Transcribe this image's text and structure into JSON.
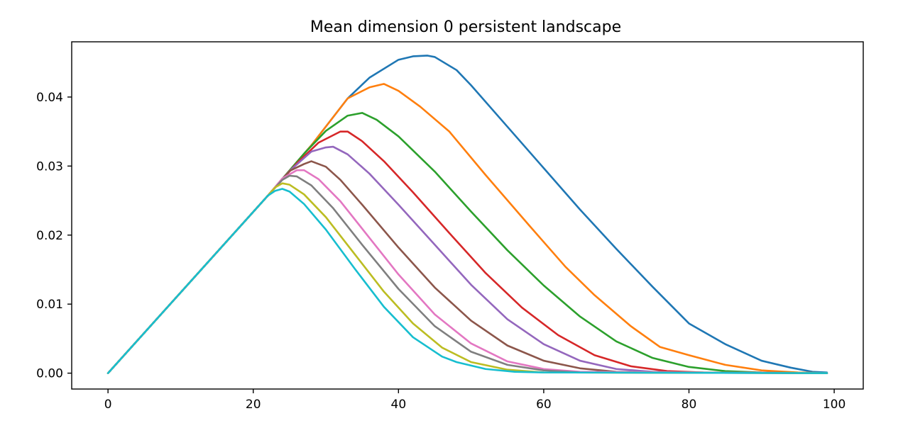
{
  "chart_data": {
    "type": "line",
    "title": "Mean dimension 0 persistent landscape",
    "xlabel": "",
    "ylabel": "",
    "xlim": [
      -5,
      104
    ],
    "ylim": [
      -0.0023,
      0.048
    ],
    "x_ticks": [
      0,
      20,
      40,
      60,
      80,
      100
    ],
    "x_tick_labels": [
      "0",
      "20",
      "40",
      "60",
      "80",
      "100"
    ],
    "y_ticks": [
      0.0,
      0.01,
      0.02,
      0.03,
      0.04
    ],
    "y_tick_labels": [
      "0.00",
      "0.01",
      "0.02",
      "0.03",
      "0.04"
    ],
    "grid": false,
    "legend": "none",
    "series": [
      {
        "color": "#1f77b4",
        "points": [
          [
            0,
            0
          ],
          [
            22,
            0.0257
          ],
          [
            28,
            0.033
          ],
          [
            33,
            0.0398
          ],
          [
            36,
            0.0428
          ],
          [
            40,
            0.0454
          ],
          [
            42,
            0.0459
          ],
          [
            44,
            0.046
          ],
          [
            45,
            0.0458
          ],
          [
            48,
            0.0439
          ],
          [
            50,
            0.0417
          ],
          [
            55,
            0.0357
          ],
          [
            60,
            0.0297
          ],
          [
            65,
            0.0237
          ],
          [
            70,
            0.018
          ],
          [
            75,
            0.0125
          ],
          [
            80,
            0.0072
          ],
          [
            85,
            0.0042
          ],
          [
            90,
            0.0018
          ],
          [
            94,
            0.0008
          ],
          [
            97,
            0.0002
          ],
          [
            99,
            0.0001
          ]
        ]
      },
      {
        "color": "#ff7f0e",
        "points": [
          [
            0,
            0
          ],
          [
            22,
            0.0257
          ],
          [
            28,
            0.033
          ],
          [
            33,
            0.0398
          ],
          [
            36,
            0.0414
          ],
          [
            38,
            0.0419
          ],
          [
            40,
            0.0409
          ],
          [
            43,
            0.0386
          ],
          [
            47,
            0.035
          ],
          [
            52,
            0.0287
          ],
          [
            58,
            0.0214
          ],
          [
            63,
            0.0154
          ],
          [
            67,
            0.0113
          ],
          [
            72,
            0.0068
          ],
          [
            76,
            0.0038
          ],
          [
            80,
            0.0026
          ],
          [
            85,
            0.0012
          ],
          [
            90,
            0.0004
          ],
          [
            95,
            0.0001
          ],
          [
            99,
            0
          ]
        ]
      },
      {
        "color": "#2ca02c",
        "points": [
          [
            0,
            0
          ],
          [
            22,
            0.0257
          ],
          [
            27,
            0.0318
          ],
          [
            30,
            0.0351
          ],
          [
            33,
            0.0373
          ],
          [
            35,
            0.0377
          ],
          [
            37,
            0.0367
          ],
          [
            40,
            0.0343
          ],
          [
            45,
            0.0292
          ],
          [
            50,
            0.0234
          ],
          [
            55,
            0.0178
          ],
          [
            60,
            0.0127
          ],
          [
            65,
            0.0082
          ],
          [
            70,
            0.0046
          ],
          [
            75,
            0.0022
          ],
          [
            80,
            0.0009
          ],
          [
            85,
            0.0003
          ],
          [
            90,
            0.0001
          ],
          [
            99,
            0
          ]
        ]
      },
      {
        "color": "#d62728",
        "points": [
          [
            0,
            0
          ],
          [
            22,
            0.0257
          ],
          [
            26,
            0.0304
          ],
          [
            29,
            0.0334
          ],
          [
            32,
            0.035
          ],
          [
            33,
            0.035
          ],
          [
            35,
            0.0336
          ],
          [
            38,
            0.0307
          ],
          [
            42,
            0.0262
          ],
          [
            47,
            0.0203
          ],
          [
            52,
            0.0145
          ],
          [
            57,
            0.0095
          ],
          [
            62,
            0.0055
          ],
          [
            67,
            0.0026
          ],
          [
            72,
            0.001
          ],
          [
            77,
            0.0003
          ],
          [
            82,
            0.0001
          ],
          [
            99,
            0
          ]
        ]
      },
      {
        "color": "#9467bd",
        "points": [
          [
            0,
            0
          ],
          [
            22,
            0.0257
          ],
          [
            25,
            0.0293
          ],
          [
            28,
            0.0321
          ],
          [
            30,
            0.0327
          ],
          [
            31,
            0.0328
          ],
          [
            33,
            0.0317
          ],
          [
            36,
            0.0289
          ],
          [
            40,
            0.0244
          ],
          [
            45,
            0.0186
          ],
          [
            50,
            0.0128
          ],
          [
            55,
            0.0078
          ],
          [
            60,
            0.0042
          ],
          [
            65,
            0.0018
          ],
          [
            70,
            0.0006
          ],
          [
            75,
            0.0002
          ],
          [
            80,
            0.0001
          ],
          [
            99,
            0
          ]
        ]
      },
      {
        "color": "#8c564b",
        "points": [
          [
            0,
            0
          ],
          [
            22,
            0.0257
          ],
          [
            25,
            0.0293
          ],
          [
            27,
            0.0303
          ],
          [
            28,
            0.0307
          ],
          [
            30,
            0.0299
          ],
          [
            32,
            0.028
          ],
          [
            35,
            0.0244
          ],
          [
            40,
            0.0182
          ],
          [
            45,
            0.0124
          ],
          [
            50,
            0.0076
          ],
          [
            55,
            0.004
          ],
          [
            60,
            0.0018
          ],
          [
            65,
            0.0007
          ],
          [
            70,
            0.0002
          ],
          [
            75,
            0.0001
          ],
          [
            99,
            0
          ]
        ]
      },
      {
        "color": "#e377c2",
        "points": [
          [
            0,
            0
          ],
          [
            22,
            0.0257
          ],
          [
            24,
            0.0282
          ],
          [
            26,
            0.0294
          ],
          [
            27,
            0.0294
          ],
          [
            29,
            0.0281
          ],
          [
            32,
            0.0249
          ],
          [
            36,
            0.0196
          ],
          [
            40,
            0.0143
          ],
          [
            45,
            0.0085
          ],
          [
            50,
            0.0043
          ],
          [
            55,
            0.0017
          ],
          [
            60,
            0.0006
          ],
          [
            65,
            0.0002
          ],
          [
            99,
            0
          ]
        ]
      },
      {
        "color": "#7f7f7f",
        "points": [
          [
            0,
            0
          ],
          [
            22,
            0.0257
          ],
          [
            24,
            0.028
          ],
          [
            25,
            0.0286
          ],
          [
            26,
            0.0285
          ],
          [
            28,
            0.0272
          ],
          [
            31,
            0.0239
          ],
          [
            35,
            0.0186
          ],
          [
            40,
            0.0122
          ],
          [
            45,
            0.0068
          ],
          [
            50,
            0.0031
          ],
          [
            55,
            0.0012
          ],
          [
            60,
            0.0004
          ],
          [
            65,
            0.0001
          ],
          [
            99,
            0
          ]
        ]
      },
      {
        "color": "#bcbd22",
        "points": [
          [
            0,
            0
          ],
          [
            22,
            0.0257
          ],
          [
            23,
            0.0269
          ],
          [
            24,
            0.0275
          ],
          [
            25,
            0.0273
          ],
          [
            27,
            0.0259
          ],
          [
            30,
            0.0226
          ],
          [
            34,
            0.0172
          ],
          [
            38,
            0.0118
          ],
          [
            42,
            0.0072
          ],
          [
            46,
            0.0037
          ],
          [
            50,
            0.0016
          ],
          [
            55,
            0.0005
          ],
          [
            60,
            0.0001
          ],
          [
            99,
            0
          ]
        ]
      },
      {
        "color": "#17becf",
        "points": [
          [
            0,
            0
          ],
          [
            22,
            0.0257
          ],
          [
            23,
            0.0264
          ],
          [
            24,
            0.0267
          ],
          [
            25,
            0.0263
          ],
          [
            27,
            0.0245
          ],
          [
            30,
            0.0208
          ],
          [
            34,
            0.0151
          ],
          [
            38,
            0.0096
          ],
          [
            42,
            0.0052
          ],
          [
            46,
            0.0024
          ],
          [
            48,
            0.0016
          ],
          [
            52,
            0.0006
          ],
          [
            56,
            0.0002
          ],
          [
            60,
            0.0001
          ],
          [
            99,
            0
          ]
        ]
      }
    ]
  }
}
